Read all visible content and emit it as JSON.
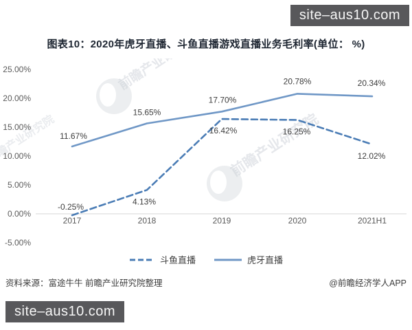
{
  "badges": {
    "top_right": "site–aus10.com",
    "bottom_left": "site–aus10.com"
  },
  "chart_data": {
    "type": "line",
    "title": "图表10：2020年虎牙直播、斗鱼直播游戏直播业务毛利率(单位： %)",
    "categories": [
      "2017",
      "2018",
      "2019",
      "2020",
      "2021H1"
    ],
    "series": [
      {
        "name": "斗鱼直播",
        "style": "dashed",
        "color": "#4a7cb5",
        "values": [
          -0.25,
          4.13,
          16.42,
          16.25,
          12.02
        ],
        "labels": [
          "-0.25%",
          "4.13%",
          "16.42%",
          "16.25%",
          "12.02%"
        ]
      },
      {
        "name": "虎牙直播",
        "style": "solid",
        "color": "#6f97c6",
        "values": [
          11.67,
          15.65,
          17.7,
          20.78,
          20.34
        ],
        "labels": [
          "11.67%",
          "15.65%",
          "17.70%",
          "20.78%",
          "20.34%"
        ]
      }
    ],
    "y_ticks": [
      "25.00%",
      "20.00%",
      "15.00%",
      "10.00%",
      "5.00%",
      "0.00%",
      "-5.00%"
    ],
    "ylim": [
      -5,
      25
    ],
    "grid": "zero-line-only",
    "legend_position": "bottom"
  },
  "watermark": {
    "text": "前瞻产业研究院"
  },
  "footer": {
    "source": "资料来源：富途牛牛 前瞻产业研究院整理",
    "credit": "@前瞻经济学人APP"
  }
}
